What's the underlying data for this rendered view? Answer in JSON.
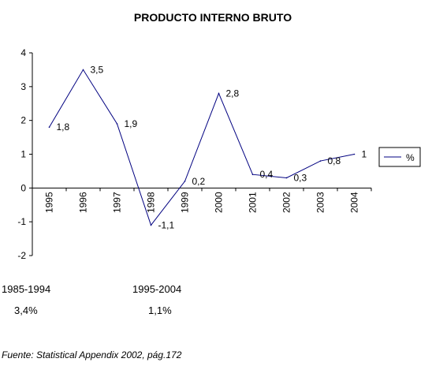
{
  "chart_data": {
    "type": "line",
    "title": "PRODUCTO INTERNO BRUTO",
    "xlabel": "",
    "ylabel": "",
    "categories": [
      "1995",
      "1996",
      "1997",
      "1998",
      "1999",
      "2000",
      "2001",
      "2002",
      "2003",
      "2004"
    ],
    "series": [
      {
        "name": "%",
        "values": [
          1.8,
          3.5,
          1.9,
          -1.1,
          0.2,
          2.8,
          0.4,
          0.3,
          0.8,
          1.0
        ],
        "labels": [
          "1,8",
          "3,5",
          "1,9",
          "-1,1",
          "0,2",
          "2,8",
          "0,4",
          "0,3",
          "0,8",
          "1"
        ],
        "color": "#000080"
      }
    ],
    "ylim": [
      -2,
      4
    ],
    "yticks": [
      4,
      3,
      2,
      1,
      0,
      -1,
      -2
    ],
    "grid": false,
    "legend": "right"
  },
  "notes": {
    "period1": "1985-1994",
    "value1": "3,4%",
    "period2": "1995-2004",
    "value2": "1,1%"
  },
  "source": "Fuente: Statistical Appendix 2002, pág.172"
}
